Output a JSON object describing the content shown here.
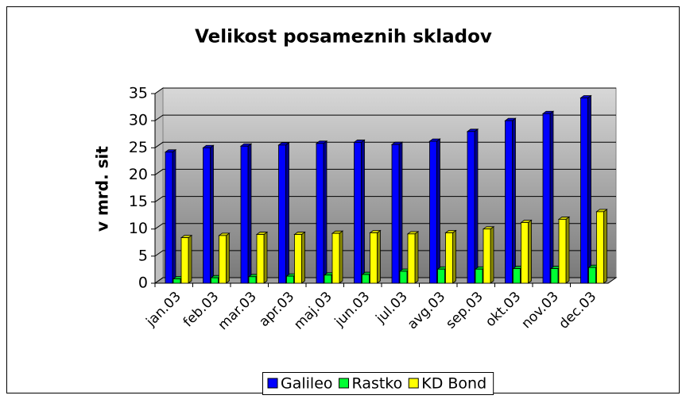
{
  "chart_data": {
    "type": "bar",
    "title": "Velikost posameznih skladov",
    "y_label": "v mrd. sit",
    "categories": [
      "jan.03",
      "feb.03",
      "mar.03",
      "apr.03",
      "maj.03",
      "jun.03",
      "jul.03",
      "avg.03",
      "sep.03",
      "okt.03",
      "nov.03",
      "dec.03"
    ],
    "series": [
      {
        "name": "Galileo",
        "color": "#0000ff",
        "values": [
          24.2,
          25,
          25.3,
          25.5,
          25.8,
          26,
          25.6,
          26.2,
          28,
          30,
          31.3,
          34.2
        ]
      },
      {
        "name": "Rastko",
        "color": "#00ff33",
        "values": [
          0.8,
          1,
          1.2,
          1.3,
          1.5,
          1.6,
          2.2,
          2.6,
          2.6,
          2.7,
          2.7,
          2.9
        ]
      },
      {
        "name": "KD Bond",
        "color": "#ffff00",
        "values": [
          8.4,
          8.8,
          9,
          9,
          9.2,
          9.3,
          9.1,
          9.3,
          10,
          11.2,
          11.8,
          13.2
        ]
      }
    ],
    "ylim": [
      0,
      35
    ],
    "yticks": [
      0,
      5,
      10,
      15,
      20,
      25,
      30,
      35
    ],
    "grid": true,
    "legend": "bottom"
  }
}
